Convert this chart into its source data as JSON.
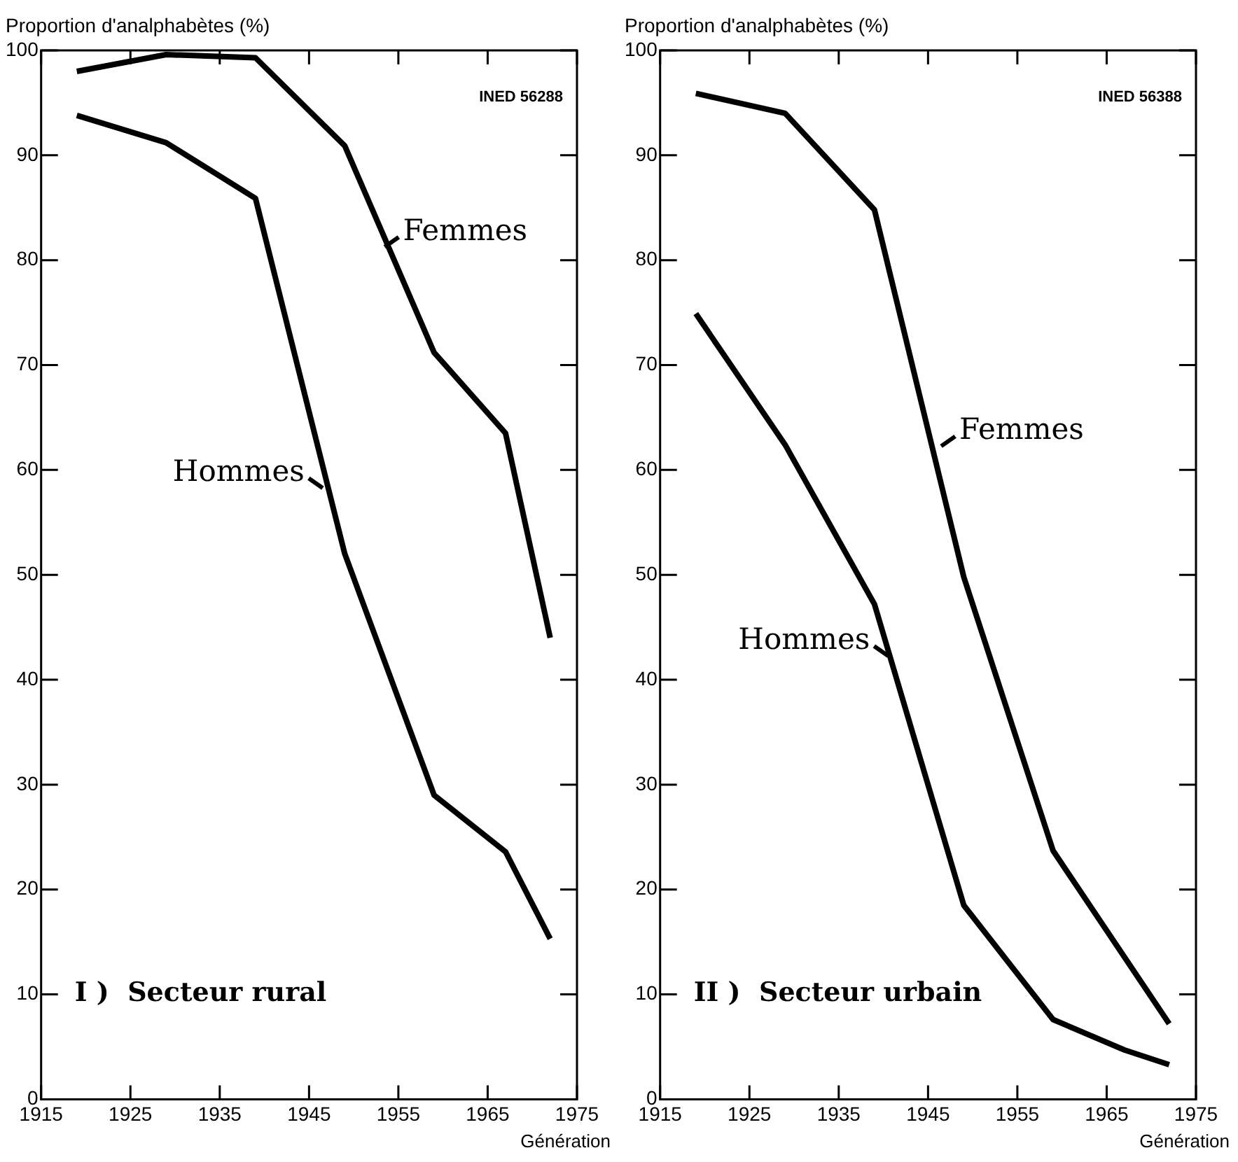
{
  "chart_data": [
    {
      "type": "line",
      "title": "I )  Secteur rural",
      "ylabel": "Proportion d'analphabètes (%)",
      "xlabel": "Génération",
      "xlim": [
        1915,
        1975
      ],
      "xticks": [
        1915,
        1925,
        1935,
        1945,
        1955,
        1965,
        1975
      ],
      "ylim": [
        0,
        100
      ],
      "yticks": [
        0,
        10,
        20,
        30,
        40,
        50,
        60,
        70,
        80,
        90,
        100
      ],
      "grid": false,
      "legend": false,
      "marker": "none",
      "line_style": "solid",
      "series": [
        {
          "color": "#000000",
          "x": [
            1919,
            1929,
            1939,
            1949,
            1959,
            1967,
            1972
          ],
          "values": [
            98,
            99.6,
            99.3,
            90.9,
            71.2,
            63.5,
            44
          ]
        },
        {
          "color": "#000000",
          "x": [
            1919,
            1929,
            1939,
            1949,
            1959,
            1967,
            1972
          ],
          "values": [
            93.8,
            91.2,
            85.9,
            52,
            29,
            23.6,
            15.3
          ]
        }
      ],
      "annotations": [
        {
          "text": "Femmes",
          "x": 1953,
          "y": 81
        },
        {
          "text": "Hommes",
          "x": 1947,
          "y": 58
        },
        "INED 56288"
      ]
    },
    {
      "type": "line",
      "title": "II )  Secteur urbain",
      "ylabel": "Proportion d'analphabètes (%)",
      "xlabel": "Génération",
      "xlim": [
        1915,
        1975
      ],
      "xticks": [
        1915,
        1925,
        1935,
        1945,
        1955,
        1965,
        1975
      ],
      "ylim": [
        0,
        100
      ],
      "yticks": [
        0,
        10,
        20,
        30,
        40,
        50,
        60,
        70,
        80,
        90,
        100
      ],
      "grid": false,
      "legend": false,
      "marker": "none",
      "line_style": "solid",
      "series": [
        {
          "color": "#000000",
          "x": [
            1919,
            1929,
            1939,
            1949,
            1959,
            1972
          ],
          "values": [
            95.9,
            94,
            84.8,
            49.8,
            23.7,
            7.2
          ]
        },
        {
          "color": "#000000",
          "x": [
            1919,
            1929,
            1939,
            1949,
            1959,
            1967,
            1972
          ],
          "values": [
            74.9,
            62.4,
            47.2,
            18.5,
            7.6,
            4.7,
            3.3
          ]
        }
      ],
      "annotations": [
        {
          "text": "Femmes",
          "x": 1946,
          "y": 62
        },
        {
          "text": "Hommes",
          "x": 1941,
          "y": 42
        },
        "INED 56388"
      ]
    }
  ]
}
